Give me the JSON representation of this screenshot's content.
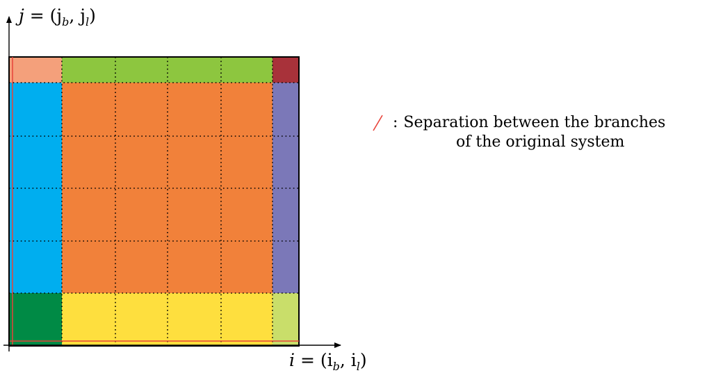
{
  "y_axis": {
    "lhs": "j",
    "rhs": "= (j",
    "sub1": "b",
    "mid": ", j",
    "sub2": "l",
    "close": ")"
  },
  "x_axis": {
    "lhs": "i",
    "rhs": "= (i",
    "sub1": "b",
    "mid": ", i",
    "sub2": "l",
    "close": ")"
  },
  "legend": {
    "separator": ":",
    "line1": "Separation between the branches",
    "line2": "of the original system",
    "line_color": "#e8433a"
  },
  "colors": {
    "top_left": "#f4a07b",
    "top_edge": "#8dc63f",
    "top_right": "#a8323a",
    "left_edge": "#00aeef",
    "interior": "#f1813a",
    "right_edge": "#7b78b8",
    "bottom_left": "#008a45",
    "bottom_edge": "#fedf3e",
    "bottom_right": "#c9de6a",
    "separation_line": "#e8433a"
  },
  "grid": {
    "columns": 6,
    "rows": 6
  }
}
